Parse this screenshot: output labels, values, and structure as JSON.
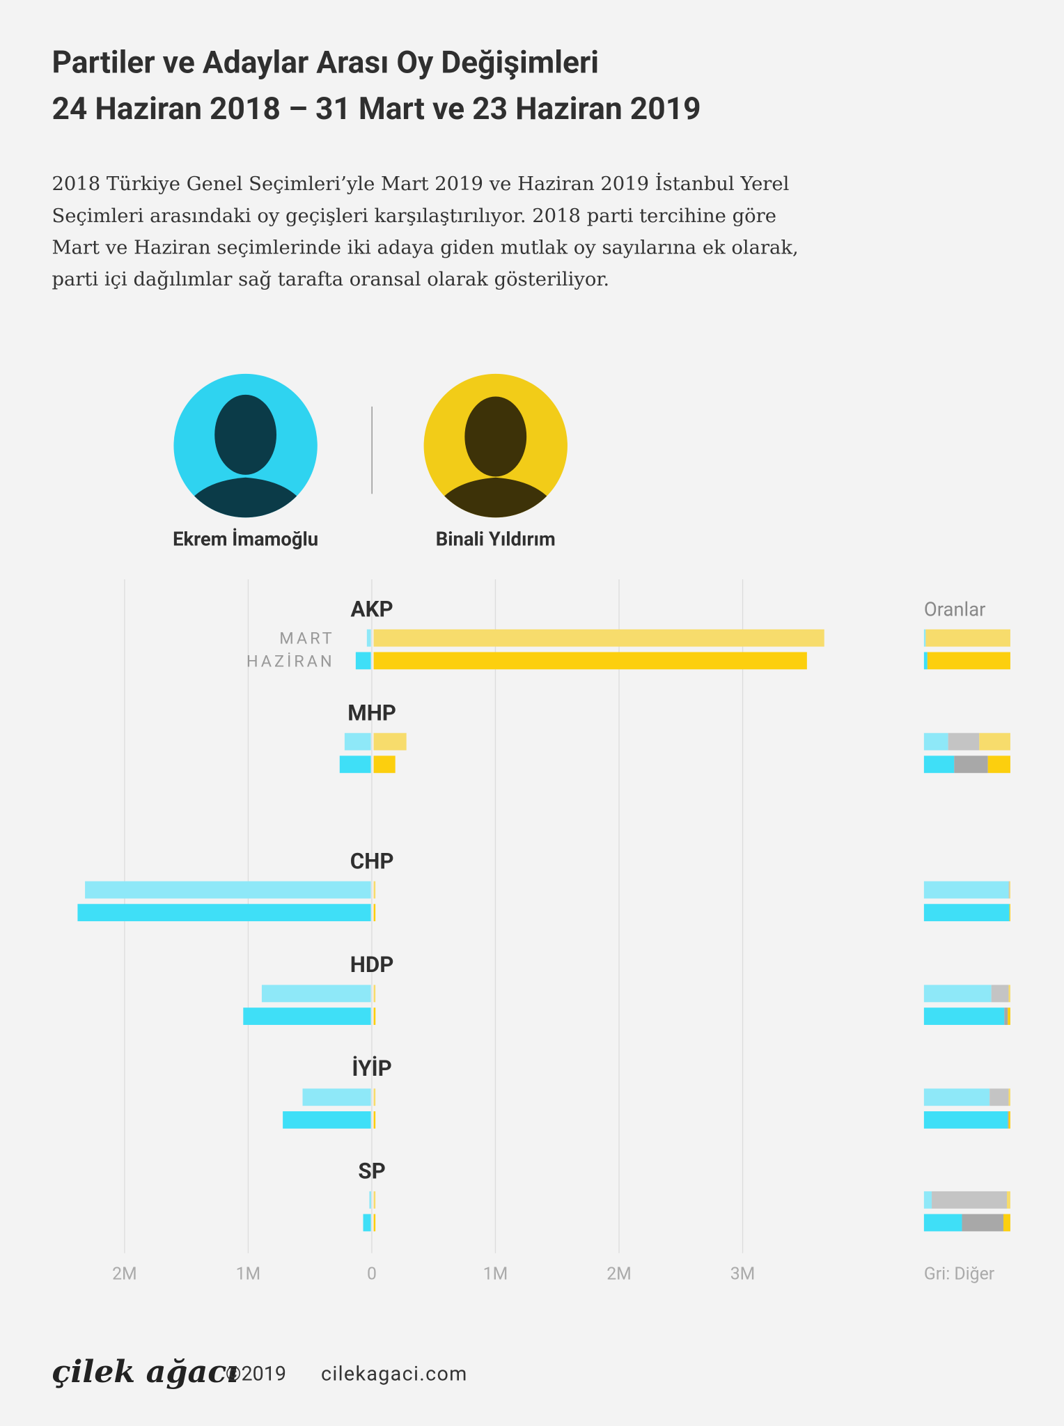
{
  "header": {
    "title_lines": [
      "Partiler ve Adaylar Arası Oy Değişimleri",
      "24 Haziran 2018 – 31 Mart ve 23 Haziran 2019"
    ],
    "description_lines": [
      "2018 Türkiye Genel Seçimleri’yle Mart 2019 ve Haziran 2019 İstanbul Yerel",
      "Seçimleri arasındaki oy geçişleri karşılaştırılıyor. 2018 parti tercihine göre",
      "Mart ve Haziran seçimlerinde iki adaya giden mutlak oy sayılarına ek olarak,",
      "parti içi dağılımlar sağ tarafta oransal olarak gösteriliyor."
    ]
  },
  "chart_data": [
    {
      "type": "diverging-bar",
      "categories": [
        "AKP",
        "MHP",
        "CHP",
        "HDP",
        "İYİP",
        "SP"
      ],
      "periods": [
        "MART",
        "HAZİRAN"
      ],
      "series": [
        {
          "name": "Ekrem İmamoğlu",
          "colors": [
            "#8ee8f8",
            "#3fdff7"
          ],
          "values": [
            [
              -40000,
              -130000
            ],
            [
              -220000,
              -260000
            ],
            [
              -2320000,
              -2380000
            ],
            [
              -890000,
              -1040000
            ],
            [
              -560000,
              -720000
            ],
            [
              -20000,
              -70000
            ]
          ]
        },
        {
          "name": "Binali Yıldırım",
          "colors": [
            "#f7dc6c",
            "#fccf0e"
          ],
          "values": [
            [
              3660000,
              3520000
            ],
            [
              280000,
              190000
            ],
            [
              20000,
              20000
            ],
            [
              10000,
              30000
            ],
            [
              20000,
              20000
            ],
            [
              10000,
              20000
            ]
          ]
        }
      ],
      "xlim": [
        -2500000,
        3900000
      ],
      "xticks": [
        {
          "value": -2000000,
          "label": "2M"
        },
        {
          "value": -1000000,
          "label": "1M"
        },
        0,
        {
          "value": 1000000,
          "label": "1M"
        },
        {
          "value": 2000000,
          "label": "2M"
        },
        {
          "value": 3000000,
          "label": "3M"
        }
      ],
      "grid": true
    },
    {
      "type": "stacked-bar",
      "title": "Oranlar",
      "footnote": "Gri: Diğer",
      "xlim": [
        0,
        100
      ],
      "series": [
        {
          "colors": [
            "#8ee8f8",
            "#3fdff7"
          ],
          "values": [
            [
              2,
              4
            ],
            [
              28,
              35
            ],
            [
              98,
              99
            ],
            [
              78,
              93
            ],
            [
              76,
              97
            ],
            [
              9,
              44
            ]
          ]
        },
        {
          "colors": [
            "#c4c4c4",
            "#a8a8a8"
          ],
          "values": [
            [
              0,
              0
            ],
            [
              36,
              39
            ],
            [
              1,
              0
            ],
            [
              20,
              4
            ],
            [
              22,
              1
            ],
            [
              87,
              48
            ]
          ]
        },
        {
          "colors": [
            "#f7dc6c",
            "#fccf0e"
          ],
          "values": [
            [
              98,
              96
            ],
            [
              36,
              26
            ],
            [
              1,
              1
            ],
            [
              2,
              3
            ],
            [
              2,
              2
            ],
            [
              4,
              8
            ]
          ]
        }
      ]
    }
  ],
  "footer": {
    "brand": "çilek ağacı",
    "copyright": "©2019",
    "url": "cilekagaci.com"
  }
}
